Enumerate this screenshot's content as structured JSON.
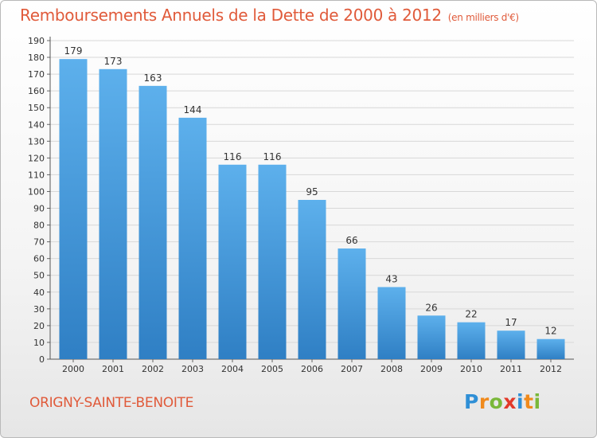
{
  "title": "Remboursements Annuels de la Dette de 2000 à 2012",
  "subtitle": "(en milliers d'€)",
  "town": "ORIGNY-SAINTE-BENOITE",
  "logo": {
    "letters": [
      "P",
      "r",
      "o",
      "x",
      "i",
      "t",
      "i"
    ],
    "colors": [
      "#2f8fd6",
      "#f08a1c",
      "#7ab83a",
      "#e23a2a",
      "#2f8fd6",
      "#f08a1c",
      "#7ab83a"
    ]
  },
  "colors": {
    "bar": "#4a9fe0",
    "title": "#e05a3a"
  },
  "chart_data": {
    "type": "bar",
    "title": "Remboursements Annuels de la Dette de 2000 à 2012",
    "subtitle": "(en milliers d'€)",
    "categories": [
      "2000",
      "2001",
      "2002",
      "2003",
      "2004",
      "2005",
      "2006",
      "2007",
      "2008",
      "2009",
      "2010",
      "2011",
      "2012"
    ],
    "values": [
      179,
      173,
      163,
      144,
      116,
      116,
      95,
      66,
      43,
      26,
      22,
      17,
      12
    ],
    "xlabel": "",
    "ylabel": "",
    "ylim": [
      0,
      190
    ],
    "yticks": [
      0,
      10,
      20,
      30,
      40,
      50,
      60,
      70,
      80,
      90,
      100,
      110,
      120,
      130,
      140,
      150,
      160,
      170,
      180,
      190
    ],
    "grid": true,
    "legend": "none"
  }
}
